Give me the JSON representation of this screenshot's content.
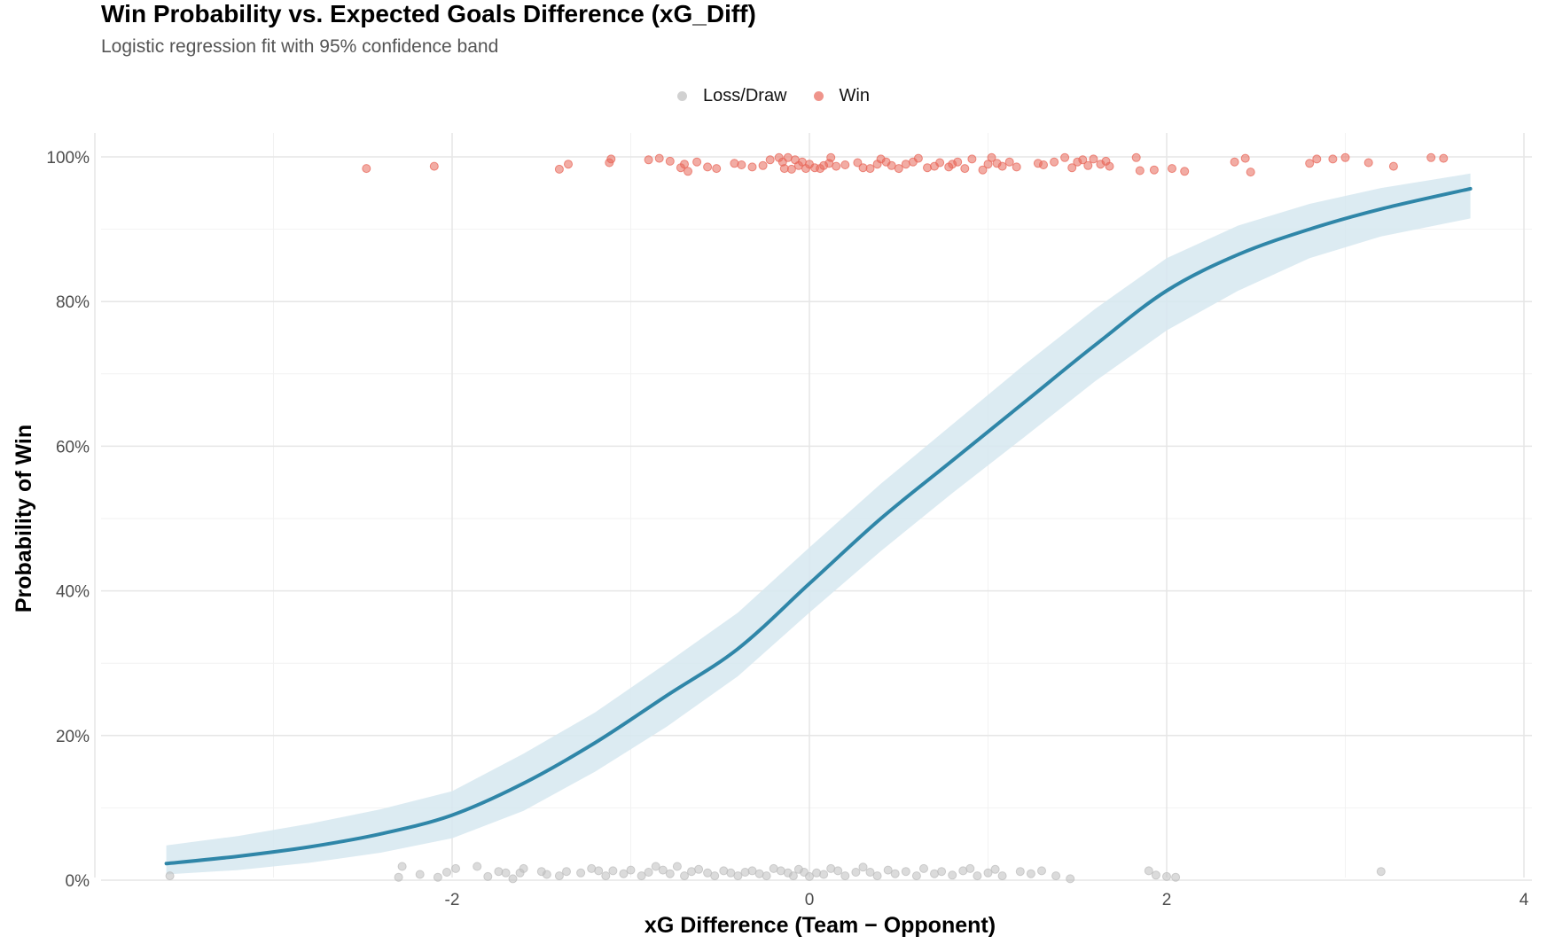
{
  "chart_data": {
    "type": "scatter",
    "title": "Win Probability vs. Expected Goals Difference (xG_Diff)",
    "subtitle": "Logistic regression fit with 95% confidence band",
    "xlabel": "xG Difference (Team − Opponent)",
    "ylabel": "Probability of Win",
    "xlim": [
      -4.0,
      4.0
    ],
    "ylim": [
      0,
      1
    ],
    "x_ticks": [
      -2,
      0,
      2,
      4
    ],
    "x_tick_labels": [
      "-2",
      "0",
      "2",
      "4"
    ],
    "y_ticks": [
      0,
      0.2,
      0.4,
      0.6,
      0.8,
      1.0
    ],
    "y_tick_labels": [
      "0%",
      "20%",
      "40%",
      "60%",
      "80%",
      "100%"
    ],
    "grid": true,
    "legend": {
      "position": "top",
      "entries": [
        {
          "label": "Loss/Draw",
          "color": "#bdbdbd"
        },
        {
          "label": "Win",
          "color": "#e8675a"
        }
      ]
    },
    "fit_curve": {
      "color": "#2f86a8",
      "band_color": "#d6e8f0",
      "x": [
        -3.6,
        -3.2,
        -2.8,
        -2.4,
        -2.0,
        -1.6,
        -1.2,
        -0.8,
        -0.4,
        0.0,
        0.4,
        0.8,
        1.2,
        1.6,
        2.0,
        2.4,
        2.8,
        3.2,
        3.7
      ],
      "y": [
        0.023,
        0.033,
        0.046,
        0.064,
        0.09,
        0.134,
        0.19,
        0.255,
        0.32,
        0.41,
        0.5,
        0.58,
        0.66,
        0.74,
        0.815,
        0.865,
        0.9,
        0.928,
        0.956
      ],
      "lower": [
        0.008,
        0.014,
        0.024,
        0.038,
        0.058,
        0.096,
        0.15,
        0.212,
        0.282,
        0.37,
        0.455,
        0.535,
        0.612,
        0.69,
        0.76,
        0.815,
        0.86,
        0.89,
        0.915
      ],
      "upper": [
        0.048,
        0.061,
        0.078,
        0.098,
        0.123,
        0.175,
        0.232,
        0.3,
        0.37,
        0.46,
        0.548,
        0.63,
        0.712,
        0.79,
        0.86,
        0.905,
        0.935,
        0.957,
        0.977
      ]
    },
    "series": [
      {
        "name": "Win",
        "color": "#e8675a",
        "points": [
          [
            -2.48,
            0.984
          ],
          [
            -2.1,
            0.987
          ],
          [
            -1.4,
            0.983
          ],
          [
            -1.35,
            0.99
          ],
          [
            -1.12,
            0.992
          ],
          [
            -1.11,
            0.997
          ],
          [
            -0.9,
            0.996
          ],
          [
            -0.84,
            0.998
          ],
          [
            -0.78,
            0.994
          ],
          [
            -0.72,
            0.985
          ],
          [
            -0.7,
            0.99
          ],
          [
            -0.68,
            0.98
          ],
          [
            -0.63,
            0.993
          ],
          [
            -0.57,
            0.986
          ],
          [
            -0.52,
            0.984
          ],
          [
            -0.42,
            0.991
          ],
          [
            -0.38,
            0.989
          ],
          [
            -0.32,
            0.986
          ],
          [
            -0.26,
            0.988
          ],
          [
            -0.22,
            0.996
          ],
          [
            -0.17,
            0.999
          ],
          [
            -0.15,
            0.993
          ],
          [
            -0.14,
            0.984
          ],
          [
            -0.12,
            0.999
          ],
          [
            -0.1,
            0.983
          ],
          [
            -0.08,
            0.996
          ],
          [
            -0.06,
            0.988
          ],
          [
            -0.04,
            0.993
          ],
          [
            -0.02,
            0.984
          ],
          [
            0.0,
            0.99
          ],
          [
            0.03,
            0.985
          ],
          [
            0.06,
            0.984
          ],
          [
            0.08,
            0.988
          ],
          [
            0.11,
            0.991
          ],
          [
            0.12,
            0.999
          ],
          [
            0.15,
            0.987
          ],
          [
            0.2,
            0.989
          ],
          [
            0.27,
            0.992
          ],
          [
            0.3,
            0.985
          ],
          [
            0.34,
            0.984
          ],
          [
            0.38,
            0.99
          ],
          [
            0.4,
            0.997
          ],
          [
            0.43,
            0.993
          ],
          [
            0.46,
            0.988
          ],
          [
            0.5,
            0.984
          ],
          [
            0.54,
            0.99
          ],
          [
            0.58,
            0.993
          ],
          [
            0.61,
            0.998
          ],
          [
            0.66,
            0.985
          ],
          [
            0.7,
            0.987
          ],
          [
            0.73,
            0.992
          ],
          [
            0.78,
            0.986
          ],
          [
            0.8,
            0.99
          ],
          [
            0.83,
            0.993
          ],
          [
            0.87,
            0.984
          ],
          [
            0.91,
            0.997
          ],
          [
            0.97,
            0.982
          ],
          [
            1.0,
            0.99
          ],
          [
            1.02,
            0.999
          ],
          [
            1.05,
            0.991
          ],
          [
            1.08,
            0.987
          ],
          [
            1.12,
            0.993
          ],
          [
            1.16,
            0.986
          ],
          [
            1.28,
            0.991
          ],
          [
            1.31,
            0.989
          ],
          [
            1.37,
            0.993
          ],
          [
            1.43,
            0.999
          ],
          [
            1.47,
            0.985
          ],
          [
            1.5,
            0.993
          ],
          [
            1.53,
            0.996
          ],
          [
            1.56,
            0.988
          ],
          [
            1.59,
            0.997
          ],
          [
            1.63,
            0.99
          ],
          [
            1.66,
            0.994
          ],
          [
            1.68,
            0.987
          ],
          [
            1.83,
            0.999
          ],
          [
            1.85,
            0.981
          ],
          [
            1.93,
            0.982
          ],
          [
            2.03,
            0.984
          ],
          [
            2.1,
            0.98
          ],
          [
            2.38,
            0.993
          ],
          [
            2.44,
            0.998
          ],
          [
            2.47,
            0.979
          ],
          [
            2.8,
            0.991
          ],
          [
            2.84,
            0.997
          ],
          [
            2.93,
            0.997
          ],
          [
            3.0,
            0.999
          ],
          [
            3.13,
            0.992
          ],
          [
            3.27,
            0.987
          ],
          [
            3.48,
            0.999
          ],
          [
            3.55,
            0.998
          ]
        ]
      },
      {
        "name": "Loss/Draw",
        "color": "#bdbdbd",
        "points": [
          [
            -3.58,
            0.006
          ],
          [
            -2.28,
            0.019
          ],
          [
            -2.3,
            0.004
          ],
          [
            -2.18,
            0.008
          ],
          [
            -2.08,
            0.004
          ],
          [
            -2.03,
            0.011
          ],
          [
            -1.98,
            0.016
          ],
          [
            -1.86,
            0.019
          ],
          [
            -1.8,
            0.005
          ],
          [
            -1.74,
            0.012
          ],
          [
            -1.7,
            0.01
          ],
          [
            -1.66,
            0.002
          ],
          [
            -1.62,
            0.01
          ],
          [
            -1.6,
            0.016
          ],
          [
            -1.5,
            0.012
          ],
          [
            -1.47,
            0.008
          ],
          [
            -1.4,
            0.006
          ],
          [
            -1.36,
            0.012
          ],
          [
            -1.28,
            0.01
          ],
          [
            -1.22,
            0.016
          ],
          [
            -1.18,
            0.013
          ],
          [
            -1.14,
            0.006
          ],
          [
            -1.1,
            0.013
          ],
          [
            -1.04,
            0.009
          ],
          [
            -1.0,
            0.014
          ],
          [
            -0.94,
            0.006
          ],
          [
            -0.9,
            0.011
          ],
          [
            -0.86,
            0.019
          ],
          [
            -0.82,
            0.014
          ],
          [
            -0.78,
            0.009
          ],
          [
            -0.74,
            0.019
          ],
          [
            -0.7,
            0.006
          ],
          [
            -0.66,
            0.012
          ],
          [
            -0.62,
            0.015
          ],
          [
            -0.57,
            0.01
          ],
          [
            -0.53,
            0.006
          ],
          [
            -0.48,
            0.013
          ],
          [
            -0.44,
            0.01
          ],
          [
            -0.4,
            0.006
          ],
          [
            -0.36,
            0.011
          ],
          [
            -0.32,
            0.013
          ],
          [
            -0.28,
            0.009
          ],
          [
            -0.24,
            0.006
          ],
          [
            -0.2,
            0.016
          ],
          [
            -0.16,
            0.013
          ],
          [
            -0.12,
            0.01
          ],
          [
            -0.09,
            0.006
          ],
          [
            -0.06,
            0.015
          ],
          [
            -0.03,
            0.011
          ],
          [
            0.0,
            0.005
          ],
          [
            0.04,
            0.01
          ],
          [
            0.08,
            0.008
          ],
          [
            0.12,
            0.016
          ],
          [
            0.16,
            0.013
          ],
          [
            0.2,
            0.006
          ],
          [
            0.26,
            0.011
          ],
          [
            0.3,
            0.018
          ],
          [
            0.34,
            0.011
          ],
          [
            0.38,
            0.006
          ],
          [
            0.44,
            0.014
          ],
          [
            0.48,
            0.009
          ],
          [
            0.54,
            0.012
          ],
          [
            0.6,
            0.006
          ],
          [
            0.64,
            0.016
          ],
          [
            0.7,
            0.009
          ],
          [
            0.74,
            0.012
          ],
          [
            0.8,
            0.007
          ],
          [
            0.86,
            0.013
          ],
          [
            0.9,
            0.016
          ],
          [
            0.94,
            0.006
          ],
          [
            1.0,
            0.01
          ],
          [
            1.04,
            0.015
          ],
          [
            1.08,
            0.006
          ],
          [
            1.18,
            0.012
          ],
          [
            1.24,
            0.009
          ],
          [
            1.3,
            0.013
          ],
          [
            1.38,
            0.006
          ],
          [
            1.46,
            0.002
          ],
          [
            1.9,
            0.013
          ],
          [
            1.94,
            0.007
          ],
          [
            2.0,
            0.005
          ],
          [
            2.05,
            0.004
          ],
          [
            3.2,
            0.012
          ]
        ]
      }
    ]
  }
}
